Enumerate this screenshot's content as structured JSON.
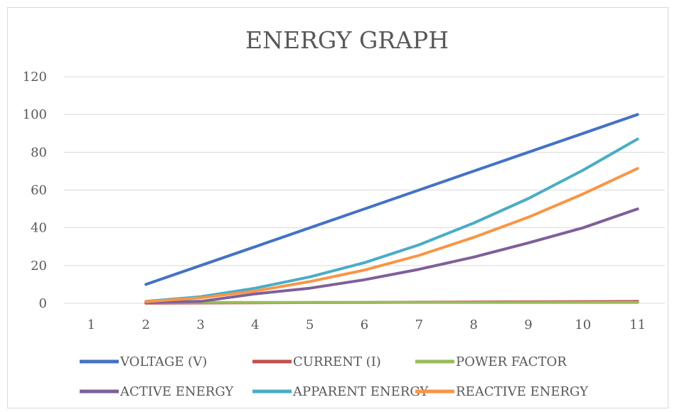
{
  "chart_data": {
    "type": "line",
    "title": "ENERGY GRAPH",
    "xlabel": "",
    "ylabel": "",
    "categories": [
      "1",
      "2",
      "3",
      "4",
      "5",
      "6",
      "7",
      "8",
      "9",
      "10",
      "11"
    ],
    "ylim": [
      0,
      120
    ],
    "yticks": [
      0,
      20,
      40,
      60,
      80,
      100,
      120
    ],
    "grid": true,
    "legend_position": "bottom",
    "series": [
      {
        "name": "VOLTAGE (V)",
        "color": "#4472C4",
        "values": [
          null,
          10,
          20,
          30,
          40,
          50,
          60,
          70,
          80,
          90,
          100
        ]
      },
      {
        "name": "CURRENT (I)",
        "color": "#C0504D",
        "values": [
          null,
          0.1,
          0.2,
          0.3,
          0.4,
          0.5,
          0.6,
          0.7,
          0.8,
          0.9,
          1.0
        ]
      },
      {
        "name": "POWER FACTOR",
        "color": "#9BBB59",
        "values": [
          null,
          0.5,
          0.5,
          0.5,
          0.5,
          0.5,
          0.5,
          0.5,
          0.5,
          0.5,
          0.5
        ]
      },
      {
        "name": "ACTIVE ENERGY",
        "color": "#7F5F9B",
        "values": [
          null,
          0.5,
          1.0,
          5.0,
          8.0,
          12.5,
          18.0,
          24.5,
          32.0,
          40.0,
          50.0
        ]
      },
      {
        "name": "APPARENT ENERGY",
        "color": "#4BACC6",
        "values": [
          null,
          1.0,
          3.5,
          8.0,
          14.0,
          21.5,
          31.0,
          42.5,
          55.5,
          70.5,
          87.0
        ]
      },
      {
        "name": "REACTIVE ENERGY",
        "color": "#F79646",
        "values": [
          null,
          0.9,
          2.9,
          6.5,
          11.5,
          17.6,
          25.4,
          34.9,
          45.6,
          57.9,
          71.4
        ]
      }
    ]
  }
}
